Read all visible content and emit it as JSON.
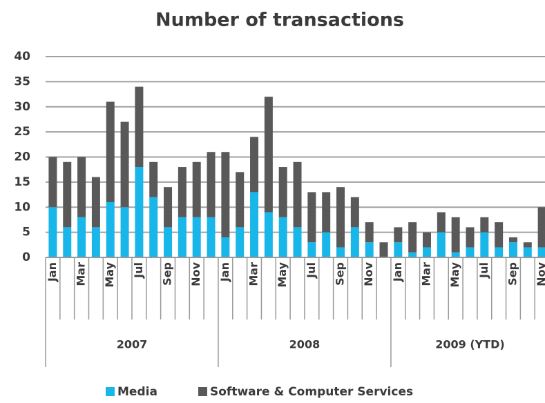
{
  "chart_data": {
    "type": "stacked_bar",
    "title": "Number of transactions",
    "category_groups": [
      {
        "label": "2007",
        "categories": [
          "Jan",
          null,
          "Mar",
          null,
          "May",
          null,
          "Jul",
          null,
          "Sep",
          null,
          "Nov",
          null
        ]
      },
      {
        "label": "2008",
        "categories": [
          "Jan",
          null,
          "Mar",
          null,
          "May",
          null,
          "Jul",
          null,
          "Sep",
          null,
          "Nov",
          null
        ]
      },
      {
        "label": "2009 (YTD)",
        "categories": [
          "Jan",
          null,
          "Mar",
          null,
          "May",
          null,
          "Jul",
          null,
          "Sep",
          null,
          "Nov"
        ]
      }
    ],
    "series": [
      {
        "name": "Media",
        "color": "#19b6ea",
        "values": [
          10,
          6,
          8,
          6,
          11,
          10,
          18,
          12,
          6,
          8,
          8,
          8,
          4,
          6,
          13,
          9,
          8,
          6,
          3,
          5,
          2,
          6,
          3,
          0,
          3,
          1,
          2,
          5,
          1,
          2,
          5,
          2,
          3,
          2,
          2
        ]
      },
      {
        "name": "Software & Computer Services",
        "color": "#595959",
        "values": [
          10,
          13,
          12,
          10,
          20,
          17,
          16,
          7,
          8,
          10,
          11,
          13,
          17,
          11,
          11,
          23,
          10,
          13,
          10,
          8,
          12,
          6,
          4,
          3,
          3,
          6,
          3,
          4,
          7,
          4,
          3,
          5,
          1,
          1,
          8
        ]
      }
    ],
    "ylim": [
      0,
      40
    ],
    "yticks": [
      0,
      5,
      10,
      15,
      20,
      25,
      30,
      35,
      40
    ],
    "grid": true,
    "legend": "bottom"
  }
}
